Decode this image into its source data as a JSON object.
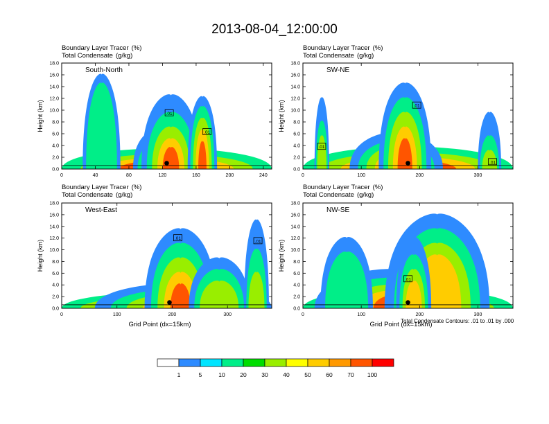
{
  "title": "2013-08-04_12:00:00",
  "note": "Total Condensate Contours: .01 to .01 by .000",
  "colorbar": {
    "colors": [
      "#ffffff",
      "#2e8bff",
      "#00e5ff",
      "#00ee88",
      "#00dd00",
      "#99ee00",
      "#ffff00",
      "#ffcc00",
      "#ff9900",
      "#ff5500",
      "#ff0000"
    ],
    "labels": [
      "1",
      "5",
      "10",
      "20",
      "30",
      "40",
      "50",
      "60",
      "70",
      "100"
    ]
  },
  "chart_data": [
    {
      "type": "heatmap",
      "header": [
        "Boundary Layer Tracer",
        "(%)",
        "Total Condensate",
        "(g/kg)"
      ],
      "label": "South-North",
      "ylabel": "Height (km)",
      "xlabel": "",
      "ylim": [
        0,
        18
      ],
      "yticks": [
        "0.0",
        "2.0",
        "4.0",
        "6.0",
        "8.0",
        "10.0",
        "12.0",
        "14.0",
        "16.0",
        "18.0"
      ],
      "xlim": [
        0,
        250
      ],
      "xticks": [
        0,
        40,
        80,
        120,
        160,
        200,
        240
      ],
      "marker_x": 125,
      "contour_labels": [
        {
          "text": ".01",
          "x": 128,
          "y": 9.5
        },
        {
          "text": ".01",
          "x": 173,
          "y": 6.3
        }
      ],
      "features": [
        {
          "x0": 0,
          "x1": 250,
          "ybase": 3.2,
          "layers": [
            2.2,
            1.6,
            1.2,
            0.8,
            0.5
          ]
        },
        {
          "x0": 85,
          "x1": 145,
          "ybase": 6.5,
          "layers": [
            4.5,
            3.2,
            2.4,
            1.6,
            1.0
          ]
        },
        {
          "x0": 95,
          "x1": 165,
          "ybase": 12.5,
          "layers": [
            9.5,
            7.0,
            5.0,
            3.5
          ]
        },
        {
          "x0": 150,
          "x1": 185,
          "ybase": 12.2,
          "layers": [
            10.5,
            8.5,
            6.5,
            4.5
          ]
        },
        {
          "x0": 25,
          "x1": 70,
          "ybase": 16.0,
          "layers": [
            14.5
          ]
        }
      ]
    },
    {
      "type": "heatmap",
      "header": [
        "Boundary Layer Tracer",
        "(%)",
        "Total Condensate",
        "(g/kg)"
      ],
      "label": "SW-NE",
      "ylabel": "Height (km)",
      "xlabel": "",
      "ylim": [
        0,
        18
      ],
      "yticks": [
        "0.0",
        "2.0",
        "4.0",
        "6.0",
        "8.0",
        "10.0",
        "12.0",
        "14.0",
        "16.0",
        "18.0"
      ],
      "xlim": [
        0,
        360
      ],
      "xticks": [
        0,
        100,
        200,
        300
      ],
      "marker_x": 180,
      "contour_labels": [
        {
          "text": ".01",
          "x": 195,
          "y": 10.8
        },
        {
          "text": ".01",
          "x": 32,
          "y": 3.8
        },
        {
          "text": ".01",
          "x": 325,
          "y": 1.2
        }
      ],
      "features": [
        {
          "x0": 0,
          "x1": 360,
          "ybase": 3.5,
          "layers": [
            2.5,
            1.8,
            1.2,
            0.8,
            0.4
          ]
        },
        {
          "x0": 80,
          "x1": 240,
          "ybase": 6.0,
          "layers": [
            4.5,
            3.5,
            2.5,
            1.5
          ]
        },
        {
          "x0": 130,
          "x1": 220,
          "ybase": 14.5,
          "layers": [
            12.0,
            9.5,
            7.0,
            5.0
          ]
        },
        {
          "x0": 20,
          "x1": 45,
          "ybase": 12.0,
          "layers": [
            8.0,
            5.5
          ]
        },
        {
          "x0": 300,
          "x1": 340,
          "ybase": 9.5,
          "layers": [
            5.5,
            3.0
          ]
        }
      ]
    },
    {
      "type": "heatmap",
      "header": [
        "Boundary Layer Tracer",
        "(%)",
        "Total Condensate",
        "(g/kg)"
      ],
      "label": "West-East",
      "ylabel": "Height (km)",
      "xlabel": "Grid Point  (dx=15km)",
      "ylim": [
        0,
        18
      ],
      "yticks": [
        "0.0",
        "2.0",
        "4.0",
        "6.0",
        "8.0",
        "10.0",
        "12.0",
        "14.0",
        "16.0",
        "18.0"
      ],
      "xlim": [
        0,
        380
      ],
      "xticks": [
        0,
        100,
        200,
        300
      ],
      "marker_x": 195,
      "contour_labels": [
        {
          "text": ".01",
          "x": 210,
          "y": 12.0
        },
        {
          "text": ".01",
          "x": 355,
          "y": 11.5
        }
      ],
      "features": [
        {
          "x0": 0,
          "x1": 380,
          "ybase": 2.4,
          "layers": [
            1.7,
            1.2,
            0.8,
            0.4
          ]
        },
        {
          "x0": 60,
          "x1": 380,
          "ybase": 4.0,
          "layers": [
            3.0,
            2.2,
            1.5,
            1.0
          ]
        },
        {
          "x0": 150,
          "x1": 280,
          "ybase": 13.5,
          "layers": [
            11.0,
            8.5,
            6.0,
            4.0
          ]
        },
        {
          "x0": 230,
          "x1": 340,
          "ybase": 8.5,
          "layers": [
            6.5,
            4.5
          ]
        },
        {
          "x0": 330,
          "x1": 375,
          "ybase": 15.0,
          "layers": [
            10.0,
            6.0
          ]
        }
      ]
    },
    {
      "type": "heatmap",
      "header": [
        "Boundary Layer Tracer",
        "(%)",
        "Total Condensate",
        "(g/kg)"
      ],
      "label": "NW-SE",
      "ylabel": "Height (km)",
      "xlabel": "Grid Point  (dx=15km)",
      "ylim": [
        0,
        18
      ],
      "yticks": [
        "0.0",
        "2.0",
        "4.0",
        "6.0",
        "8.0",
        "10.0",
        "12.0",
        "14.0",
        "16.0",
        "18.0"
      ],
      "xlim": [
        0,
        360
      ],
      "xticks": [
        0,
        100,
        200,
        300
      ],
      "marker_x": 180,
      "contour_labels": [
        {
          "text": ".01",
          "x": 180,
          "y": 5.0
        }
      ],
      "features": [
        {
          "x0": 0,
          "x1": 360,
          "ybase": 3.0,
          "layers": [
            2.2,
            1.6,
            1.1,
            0.6
          ]
        },
        {
          "x0": 20,
          "x1": 300,
          "ybase": 6.5,
          "layers": [
            5.0,
            3.8,
            2.8,
            2.0
          ]
        },
        {
          "x0": 140,
          "x1": 320,
          "ybase": 16.0,
          "layers": [
            13.5,
            11.0,
            9.0
          ]
        },
        {
          "x0": 160,
          "x1": 220,
          "ybase": 12.0,
          "layers": [
            9.0,
            6.5,
            4.5
          ]
        },
        {
          "x0": 30,
          "x1": 120,
          "ybase": 12.0,
          "layers": [
            9.5
          ]
        }
      ]
    }
  ]
}
